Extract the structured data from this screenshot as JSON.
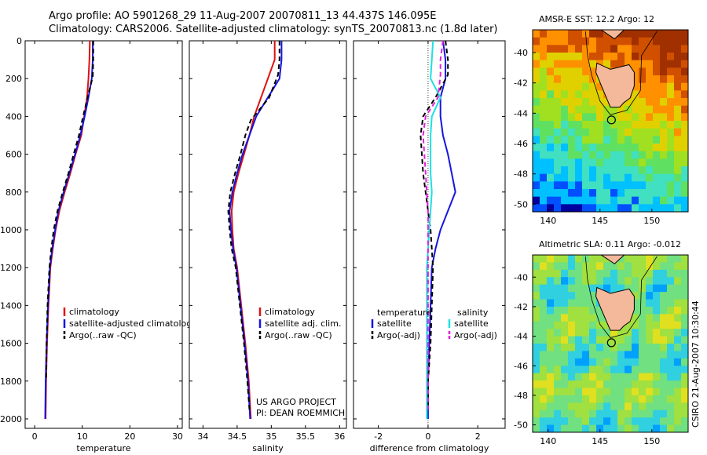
{
  "header": {
    "line1": "Argo profile: AO 5901268_29 11-Aug-2007 20070811_13 44.437S 146.095E",
    "line2": "Climatology: CARS2006. Satellite-adjusted climatology: synTS_20070813.nc (1.8d later)"
  },
  "side_label": "CSIRO 21-Aug-2007 10:30:44",
  "credits": {
    "project": "US ARGO PROJECT",
    "pi": "PI: DEAN ROEMMICH"
  },
  "colors": {
    "climatology": "#e01010",
    "satellite": "#1515e0",
    "argo": "#000000",
    "sat_salinity": "#20e0e0",
    "argo_salinity": "#e020e0"
  },
  "chart_data": [
    {
      "type": "line",
      "title": "",
      "xlabel": "temperature",
      "ylabel": "",
      "xlim": [
        -2,
        31
      ],
      "ylim": [
        2050,
        0
      ],
      "xticks": [
        0,
        10,
        20,
        30
      ],
      "yticks": [
        0,
        200,
        400,
        600,
        800,
        1000,
        1200,
        1400,
        1600,
        1800,
        2000
      ],
      "legend": {
        "position": "lower-right",
        "entries": [
          "climatology",
          "satellite-adjusted climatology",
          "Argo(..raw -QC)"
        ]
      },
      "series": [
        {
          "name": "climatology",
          "color": "#e01010",
          "style": "solid",
          "x": [
            11.6,
            11.5,
            11.3,
            11.0,
            10.4,
            9.8,
            8.6,
            7.5,
            6.3,
            5.2,
            4.4,
            3.8,
            3.3,
            2.9,
            2.6,
            2.4,
            2.3
          ],
          "y": [
            0,
            100,
            200,
            300,
            400,
            500,
            600,
            700,
            800,
            900,
            1000,
            1100,
            1200,
            1400,
            1600,
            1800,
            2000
          ]
        },
        {
          "name": "satellite-adjusted climatology",
          "color": "#1515e0",
          "style": "solid",
          "x": [
            12.2,
            12.2,
            12.0,
            11.3,
            10.5,
            9.6,
            8.5,
            7.3,
            6.1,
            5.0,
            4.3,
            3.7,
            3.2,
            2.8,
            2.5,
            2.3,
            2.2
          ],
          "y": [
            0,
            100,
            200,
            300,
            400,
            500,
            600,
            700,
            800,
            900,
            1000,
            1100,
            1200,
            1400,
            1600,
            1800,
            2000
          ]
        },
        {
          "name": "Argo(..raw -QC)",
          "color": "#000000",
          "style": "dashed",
          "x": [
            12.3,
            12.3,
            12.2,
            11.1,
            10.0,
            9.3,
            8.2,
            7.1,
            5.9,
            4.8,
            4.0,
            3.5,
            3.1,
            2.7,
            2.5,
            2.4
          ],
          "y": [
            0,
            100,
            190,
            300,
            420,
            500,
            600,
            700,
            800,
            900,
            1000,
            1100,
            1200,
            1400,
            1600,
            1800
          ]
        }
      ]
    },
    {
      "type": "line",
      "title": "",
      "xlabel": "salinity",
      "ylabel": "",
      "xlim": [
        33.8,
        36.1
      ],
      "ylim": [
        2050,
        0
      ],
      "xticks": [
        34,
        34.5,
        35,
        35.5,
        36
      ],
      "xticklabels": [
        "34",
        "34.5",
        "35",
        "35.5",
        "36"
      ],
      "legend": {
        "position": "lower-right",
        "entries": [
          "climatology",
          "satellite adj. clim.",
          "Argo(..raw -QC)"
        ]
      },
      "series": [
        {
          "name": "climatology",
          "color": "#e01010",
          "style": "solid",
          "x": [
            35.05,
            35.05,
            34.95,
            34.85,
            34.75,
            34.68,
            34.6,
            34.52,
            34.45,
            34.42,
            34.43,
            34.45,
            34.5,
            34.56,
            34.62,
            34.67,
            34.7
          ],
          "y": [
            0,
            100,
            200,
            300,
            400,
            500,
            600,
            700,
            800,
            900,
            1000,
            1100,
            1200,
            1400,
            1600,
            1800,
            2000
          ]
        },
        {
          "name": "satellite adj. clim.",
          "color": "#1515e0",
          "style": "solid",
          "x": [
            35.15,
            35.15,
            35.12,
            34.95,
            34.78,
            34.68,
            34.58,
            34.5,
            34.43,
            34.39,
            34.41,
            34.44,
            34.49,
            34.55,
            34.61,
            34.66,
            34.69
          ],
          "y": [
            0,
            100,
            200,
            300,
            400,
            500,
            600,
            700,
            800,
            900,
            1000,
            1100,
            1200,
            1400,
            1600,
            1800,
            2000
          ]
        },
        {
          "name": "Argo(..raw -QC)",
          "color": "#000000",
          "style": "dashed",
          "x": [
            35.12,
            35.12,
            35.1,
            34.97,
            34.7,
            34.62,
            34.55,
            34.47,
            34.4,
            34.37,
            34.39,
            34.42,
            34.48,
            34.54,
            34.6,
            34.65,
            34.68
          ],
          "y": [
            0,
            100,
            180,
            300,
            420,
            500,
            600,
            700,
            800,
            900,
            1000,
            1100,
            1200,
            1400,
            1600,
            1800,
            1950
          ]
        }
      ]
    },
    {
      "type": "line",
      "title": "",
      "xlabel": "difference from climatology",
      "ylabel": "",
      "xlim": [
        -3,
        3.1
      ],
      "ylim": [
        2050,
        0
      ],
      "xticks": [
        -2,
        0,
        2
      ],
      "legend": {
        "position": "lower-center",
        "columns": [
          {
            "heading": "temperature",
            "entries": [
              "satellite",
              "Argo(-adj)"
            ]
          },
          {
            "heading": "salinity",
            "entries": [
              "satellite",
              "Argo(-adj)"
            ]
          }
        ]
      },
      "series": [
        {
          "name": "satellite",
          "group": "temperature",
          "color": "#1515e0",
          "style": "solid",
          "x": [
            0.6,
            0.7,
            0.7,
            0.5,
            0.5,
            0.6,
            0.8,
            0.95,
            1.1,
            0.8,
            0.5,
            0.3,
            0.15,
            0.1,
            0.05,
            0.0,
            0.0
          ],
          "y": [
            0,
            100,
            200,
            300,
            400,
            500,
            600,
            700,
            800,
            900,
            1000,
            1100,
            1200,
            1400,
            1600,
            1800,
            2000
          ]
        },
        {
          "name": "Argo(-adj)",
          "group": "temperature",
          "color": "#000000",
          "style": "dashed",
          "x": [
            0.7,
            0.8,
            0.8,
            0.3,
            -0.2,
            -0.3,
            -0.25,
            -0.2,
            -0.1,
            0.0,
            0.1,
            0.15,
            0.2,
            0.15,
            0.1,
            0.0,
            0.0
          ],
          "y": [
            0,
            100,
            180,
            300,
            400,
            500,
            600,
            700,
            800,
            900,
            1000,
            1100,
            1200,
            1400,
            1600,
            1800,
            1950
          ]
        },
        {
          "name": "satellite",
          "group": "salinity",
          "color": "#20e0e0",
          "style": "solid",
          "x": [
            0.2,
            0.15,
            0.1,
            0.5,
            0.15,
            0.1,
            0.1,
            0.1,
            0.15,
            0.1,
            0.05,
            0.0,
            -0.05,
            -0.05,
            -0.05,
            -0.05,
            -0.05
          ],
          "y": [
            0,
            100,
            200,
            300,
            400,
            500,
            600,
            700,
            800,
            900,
            1000,
            1100,
            1200,
            1400,
            1600,
            1800,
            2000
          ]
        },
        {
          "name": "Argo(-adj)",
          "group": "salinity",
          "color": "#e020e0",
          "style": "dashed",
          "x": [
            0.6,
            0.5,
            0.5,
            0.4,
            -0.1,
            -0.2,
            -0.15,
            -0.1,
            -0.05,
            0.0,
            0.0,
            0.0,
            0.0,
            0.0,
            0.0,
            0.0,
            0.0
          ],
          "y": [
            0,
            100,
            180,
            300,
            400,
            500,
            600,
            700,
            800,
            900,
            1000,
            1100,
            1200,
            1400,
            1600,
            1800,
            1950
          ]
        }
      ]
    },
    {
      "type": "heatmap",
      "title": "AMSR-E SST: 12.2 Argo: 12",
      "xlim": [
        138.5,
        153.5
      ],
      "ylim": [
        -50.5,
        -38.5
      ],
      "xticks": [
        140,
        145,
        150
      ],
      "yticks": [
        -40,
        -42,
        -44,
        -46,
        -48,
        -50
      ],
      "marker": {
        "lon": 146.1,
        "lat": -44.44
      },
      "colors": [
        "#0000a0",
        "#0050ff",
        "#00c0ff",
        "#40e0c0",
        "#60e060",
        "#a0e020",
        "#e0d000",
        "#ff9000",
        "#d05000",
        "#a03000"
      ]
    },
    {
      "type": "heatmap",
      "title": "Altimetric SLA: 0.11 Argo: -0.012",
      "xlim": [
        138.5,
        153.5
      ],
      "ylim": [
        -50.5,
        -38.5
      ],
      "xticks": [
        140,
        145,
        150
      ],
      "yticks": [
        -40,
        -42,
        -44,
        -46,
        -48,
        -50
      ],
      "marker": {
        "lon": 146.1,
        "lat": -44.44
      },
      "colors": [
        "#00a0ff",
        "#30d0e0",
        "#70e080",
        "#a0e040",
        "#e0e020",
        "#ffb000"
      ]
    }
  ]
}
